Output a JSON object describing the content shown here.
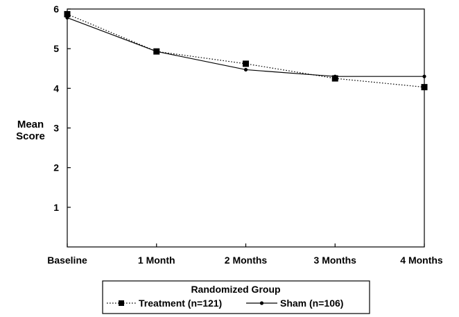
{
  "chart_data": {
    "type": "line",
    "categories": [
      "Baseline",
      "1 Month",
      "2 Months",
      "3 Months",
      "4 Months"
    ],
    "ylabel": [
      "Mean",
      "Score"
    ],
    "ylim": [
      0,
      6
    ],
    "yticks": [
      1,
      2,
      3,
      4,
      5,
      6
    ],
    "grid": false,
    "legend": {
      "title": "Randomized Group",
      "placement": "bottom-center"
    },
    "series": [
      {
        "name": "Treatment (n=121)",
        "values": [
          5.87,
          4.93,
          4.62,
          4.25,
          4.03
        ],
        "line_style": "dotted",
        "marker": "square",
        "color": "#000000"
      },
      {
        "name": "Sham (n=106)",
        "values": [
          5.78,
          4.93,
          4.47,
          4.3,
          4.3
        ],
        "line_style": "solid",
        "marker": "circle",
        "color": "#000000"
      }
    ]
  }
}
